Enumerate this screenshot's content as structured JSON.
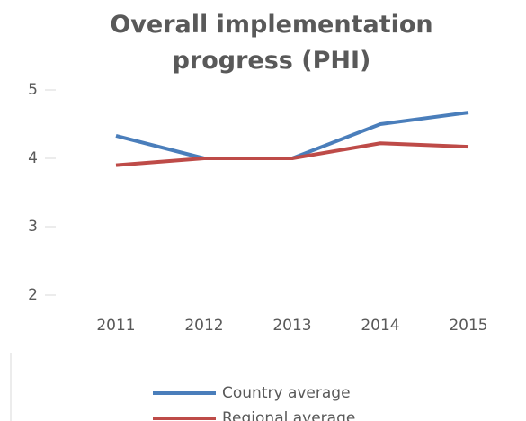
{
  "chart_data": {
    "type": "line",
    "title": "Overall implementation progress (PHI)",
    "categories": [
      "2011",
      "2012",
      "2013",
      "2014",
      "2015"
    ],
    "series": [
      {
        "name": "Country average",
        "color": "#4a7ebb",
        "values": [
          4.33,
          4.0,
          4.0,
          4.5,
          4.67
        ]
      },
      {
        "name": "Regional average",
        "color": "#be4b48",
        "values": [
          3.9,
          4.0,
          4.0,
          4.22,
          4.17
        ]
      }
    ],
    "ylim": [
      2,
      5
    ],
    "yticks": [
      2,
      3,
      4,
      5
    ],
    "legend": "bottom"
  }
}
